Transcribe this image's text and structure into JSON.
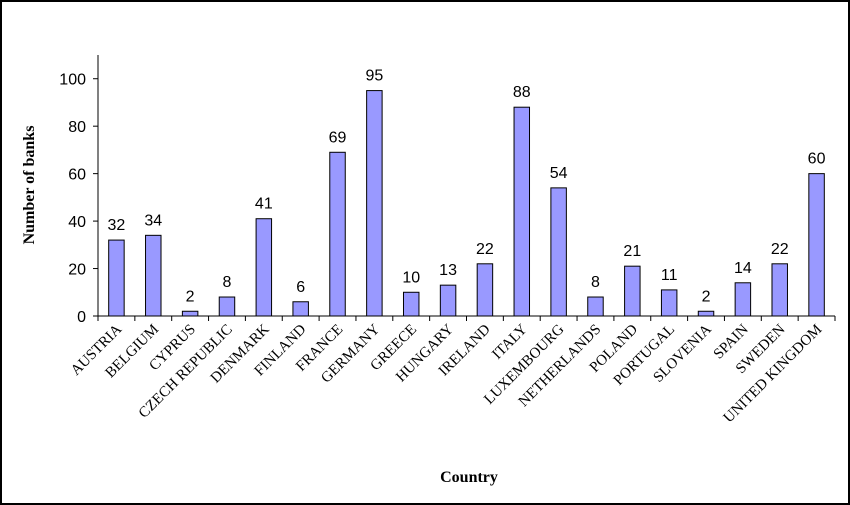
{
  "chart_data": {
    "type": "bar",
    "x_label": "Country",
    "y_label": "Number of banks",
    "categories": [
      "AUSTRIA",
      "BELGIUM",
      "CYPRUS",
      "CZECH REPUBLIC",
      "DENMARK",
      "FINLAND",
      "FRANCE",
      "GERMANY",
      "GREECE",
      "HUNGARY",
      "IRELAND",
      "ITALY",
      "LUXEMBOURG",
      "NETHERLANDS",
      "POLAND",
      "PORTUGAL",
      "SLOVENIA",
      "SPAIN",
      "SWEDEN",
      "UNITED KINGDOM"
    ],
    "values": [
      32,
      34,
      2,
      8,
      41,
      6,
      69,
      95,
      10,
      13,
      22,
      88,
      54,
      8,
      21,
      11,
      2,
      14,
      22,
      60
    ],
    "color": "#9999ff",
    "ylim": [
      0,
      110
    ],
    "yticks": [
      0,
      20,
      40,
      60,
      80,
      100
    ],
    "grid": false
  }
}
